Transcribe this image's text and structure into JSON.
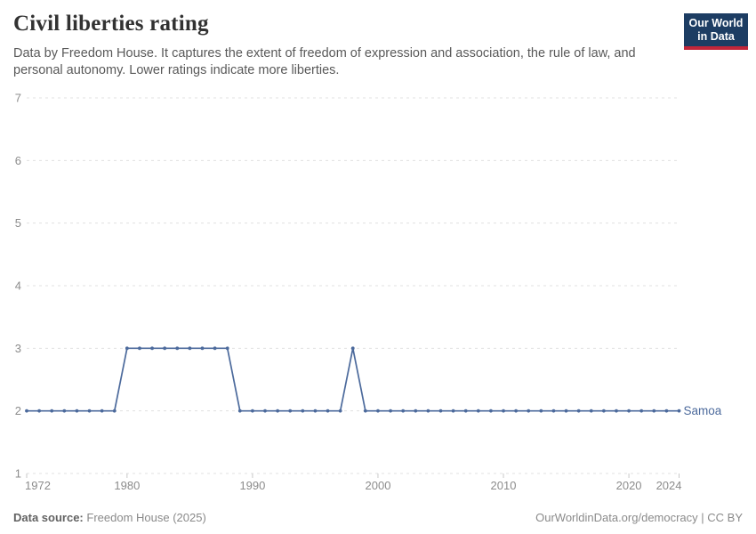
{
  "header": {
    "title": "Civil liberties rating",
    "subtitle": "Data by Freedom House. It captures the extent of freedom of expression and association, the rule of law, and personal autonomy. Lower ratings indicate more liberties."
  },
  "logo": {
    "line1": "Our World",
    "line2": "in Data",
    "bg_color": "#1d3d63",
    "stripe_color": "#c2263a"
  },
  "chart_data": {
    "type": "line",
    "title": "Civil liberties rating",
    "xlabel": "",
    "ylabel": "",
    "ylim": [
      1,
      7
    ],
    "yticks": [
      1,
      2,
      3,
      4,
      5,
      6,
      7
    ],
    "xticks": [
      1972,
      1980,
      1990,
      2000,
      2010,
      2020,
      2024
    ],
    "grid": true,
    "legend_position": "end-of-line-label",
    "series": [
      {
        "name": "Samoa",
        "color": "#4C6A9C",
        "x": [
          1972,
          1973,
          1974,
          1975,
          1976,
          1977,
          1978,
          1979,
          1980,
          1981,
          1982,
          1983,
          1984,
          1985,
          1986,
          1987,
          1988,
          1989,
          1990,
          1991,
          1992,
          1993,
          1994,
          1995,
          1996,
          1997,
          1998,
          1999,
          2000,
          2001,
          2002,
          2003,
          2004,
          2005,
          2006,
          2007,
          2008,
          2009,
          2010,
          2011,
          2012,
          2013,
          2014,
          2015,
          2016,
          2017,
          2018,
          2019,
          2020,
          2021,
          2022,
          2023,
          2024
        ],
        "values": [
          2,
          2,
          2,
          2,
          2,
          2,
          2,
          2,
          3,
          3,
          3,
          3,
          3,
          3,
          3,
          3,
          3,
          2,
          2,
          2,
          2,
          2,
          2,
          2,
          2,
          2,
          3,
          2,
          2,
          2,
          2,
          2,
          2,
          2,
          2,
          2,
          2,
          2,
          2,
          2,
          2,
          2,
          2,
          2,
          2,
          2,
          2,
          2,
          2,
          2,
          2,
          2,
          2
        ]
      }
    ]
  },
  "footer": {
    "source_label": "Data source:",
    "source_value": "Freedom House (2025)",
    "attribution": "OurWorldinData.org/democracy | CC BY"
  }
}
